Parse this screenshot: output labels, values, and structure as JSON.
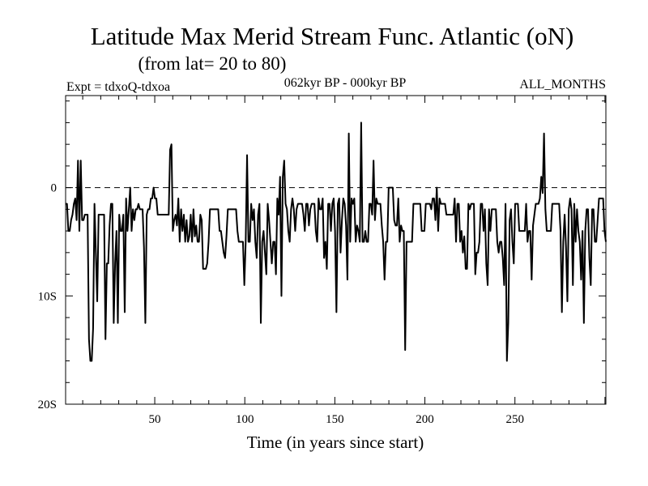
{
  "chart_data": {
    "type": "line",
    "title": "Latitude Max Merid Stream Func. Atlantic (oN)",
    "subtitle": "(from lat= 20 to 80)",
    "expt_label": "Expt = tdxoQ-tdxoa",
    "period_label": "062kyr BP - 000kyr BP",
    "months_label": "ALL_MONTHS",
    "xlabel": "Time (in years since start)",
    "ylabel": "",
    "xlim": [
      0.5,
      300.5
    ],
    "ylim": [
      -20,
      8.5
    ],
    "x_ticks": [
      {
        "value": 50,
        "label": "50"
      },
      {
        "value": 100,
        "label": "100"
      },
      {
        "value": 150,
        "label": "150"
      },
      {
        "value": 200,
        "label": "200"
      },
      {
        "value": 250,
        "label": "250"
      }
    ],
    "y_ticks": [
      {
        "value": 0,
        "label": "0"
      },
      {
        "value": -10,
        "label": "10S"
      },
      {
        "value": -20,
        "label": "20S"
      }
    ],
    "zero_line": "dashed",
    "grid": false,
    "series": [
      {
        "color": "#000000",
        "values": [
          -1.5,
          -1.5,
          -4,
          -4,
          -3,
          -2.5,
          -1.5,
          -1,
          -3,
          2.5,
          -4,
          2.5,
          -3,
          -3,
          -2.5,
          -2.5,
          -2.5,
          -14,
          -16,
          -16,
          -13,
          -1.5,
          -6,
          -10.5,
          -2.5,
          -2.5,
          -2.5,
          -2.5,
          -2.5,
          -14,
          -7,
          -7,
          -3.5,
          -1.5,
          -1.5,
          -12.5,
          -7,
          -4,
          -12.5,
          -2.5,
          -4,
          -4,
          -2.5,
          -11.5,
          -1,
          -4,
          -2,
          0,
          -4,
          -2,
          -3,
          -2,
          -2,
          -1.5,
          -2,
          -2,
          -2,
          -5.5,
          -12.5,
          -2.5,
          -2,
          -2,
          -1,
          -1,
          0,
          -1,
          -1,
          -2.5,
          -2.5,
          -2.5,
          -2.5,
          -2.5,
          -2.5,
          -2.5,
          -2.5,
          -2.5,
          3.5,
          4,
          -4,
          -3,
          -2.5,
          -3.5,
          -1,
          -5,
          -2,
          -4,
          -2.5,
          -5,
          -3,
          -5,
          -4.5,
          -2.5,
          -5,
          -2,
          -4.5,
          -3.5,
          -5,
          -5,
          -2.5,
          -3,
          -7.5,
          -7.5,
          -7.5,
          -7,
          -5,
          -2,
          -2,
          -2,
          -2,
          -2,
          -2,
          -2,
          -4,
          -4,
          -5,
          -6,
          -6.5,
          -4.5,
          -2,
          -2,
          -2,
          -2,
          -2,
          -2,
          -2,
          -4,
          -5,
          -5,
          -5,
          -5,
          -9,
          -5,
          3,
          -5,
          -5,
          -1.5,
          -3,
          -2,
          -5,
          -6.5,
          -2.5,
          -1.5,
          -12.5,
          -5,
          -4,
          -6,
          -8,
          -1.5,
          -3,
          -5,
          -7,
          -5,
          -5,
          -8,
          -1,
          -2.5,
          1,
          -10,
          1,
          2.5,
          -1.5,
          -2,
          -4,
          -5,
          -2,
          -1,
          -2,
          -4,
          -2,
          -1.5,
          -1.5,
          -1.5,
          -1.5,
          -2.5,
          -4,
          -1.5,
          -1.5,
          -3.5,
          -2,
          -1.5,
          -1.5,
          -1.5,
          -4,
          -5,
          -1,
          -2,
          -2,
          -1,
          -6.5,
          -5,
          -7.5,
          -1.5,
          -1.5,
          -4,
          -1.5,
          -1,
          -4,
          -11.5,
          -1.5,
          -1,
          -6,
          -3,
          -1,
          -1.5,
          -3.5,
          -8.5,
          5,
          -5,
          -1,
          -1.5,
          -1,
          -5,
          -3.5,
          -4,
          -5,
          6,
          -5,
          -5,
          -4,
          -5,
          -5,
          -1.5,
          -1.5,
          -2.5,
          2.5,
          -3,
          -1,
          -1.5,
          -1.5,
          -1.5,
          -3.5,
          -5,
          -8.5,
          -5,
          -5,
          0,
          0,
          0,
          0,
          -3,
          -3.5,
          -3.5,
          -1,
          -5,
          -3.5,
          -4,
          -4,
          -15,
          -5,
          -5,
          -5,
          -5,
          -5,
          -1.5,
          -1.5,
          -1.5,
          -1.5,
          -1.5,
          -1.5,
          -4,
          -4,
          -4,
          -1.5,
          -1.5,
          -1.5,
          -1.5,
          -2,
          -1,
          -1,
          -3,
          0,
          -4,
          -1,
          -1.5,
          -1.5,
          -1.5,
          -1.5,
          -2.5,
          -2.5,
          -2.5,
          -2.5,
          -2.5,
          -2.5,
          -1,
          -5,
          -1.5,
          -1.5,
          -5,
          -4,
          -6,
          -4.5,
          -7.5,
          -7.5,
          -1.5,
          -2,
          -1.5,
          -1.5,
          -1.5,
          -8,
          -6,
          -6,
          -5,
          -1.5,
          -1.5,
          -4,
          -2,
          -7,
          -9,
          -2,
          -4,
          -2,
          -2,
          -2,
          -2,
          -5,
          -6,
          -5,
          -5,
          -6.5,
          -9,
          -1.5,
          -16,
          -12.5,
          -3,
          -2,
          -5,
          -7,
          -1.5,
          -1.5,
          -1.5,
          -4,
          -4,
          -4,
          -4,
          -4,
          -1.5,
          -5,
          -4,
          -4,
          -8.5,
          -3.5,
          -2.5,
          -1.5,
          -1.5,
          -1.5,
          -1,
          1,
          -0.5,
          5,
          -2,
          -4,
          -4,
          -4,
          -4,
          -1.5,
          -1.5,
          -1.5,
          -1.5,
          -1.5,
          -1.5,
          -4,
          -11.5,
          -5,
          -2.5,
          -5.5,
          -10.5,
          -2,
          -1,
          -2,
          -9,
          -1.5,
          -5,
          -2,
          -4,
          -5,
          -8.5,
          -4,
          -12.5,
          -4,
          -2,
          -2,
          -6.5,
          -9,
          -2,
          -2,
          -5,
          -5,
          -3,
          -1,
          -1,
          -1,
          -1,
          -4,
          -5
        ]
      }
    ]
  }
}
